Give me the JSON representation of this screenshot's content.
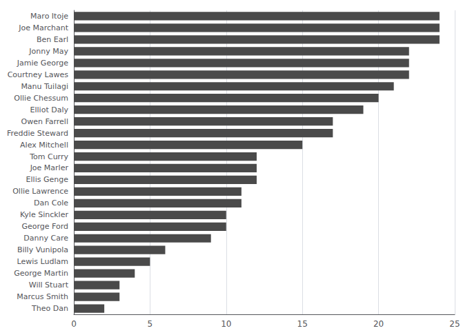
{
  "chart_data": {
    "type": "bar",
    "orientation": "horizontal",
    "categories": [
      "Maro Itoje",
      "Joe Marchant",
      "Ben Earl",
      "Jonny May",
      "Jamie George",
      "Courtney Lawes",
      "Manu Tuilagi",
      "Ollie Chessum",
      "Elliot Daly",
      "Owen Farrell",
      "Freddie Steward",
      "Alex Mitchell",
      "Tom Curry",
      "Joe Marler",
      "Ellis Genge",
      "Ollie Lawrence",
      "Dan Cole",
      "Kyle Sinckler",
      "George Ford",
      "Danny Care",
      "Billy Vunipola",
      "Lewis Ludlam",
      "George Martin",
      "Will Stuart",
      "Marcus Smith",
      "Theo Dan"
    ],
    "values": [
      24,
      24,
      24,
      22,
      22,
      22,
      21,
      20,
      19,
      17,
      17,
      15,
      12,
      12,
      12,
      11,
      11,
      10,
      10,
      9,
      6,
      5,
      4,
      3,
      3,
      2
    ],
    "color": "#4a4a4a",
    "xlim": [
      0,
      25
    ],
    "xticks": [
      0,
      5,
      10,
      15,
      20,
      25
    ],
    "grid": true
  }
}
